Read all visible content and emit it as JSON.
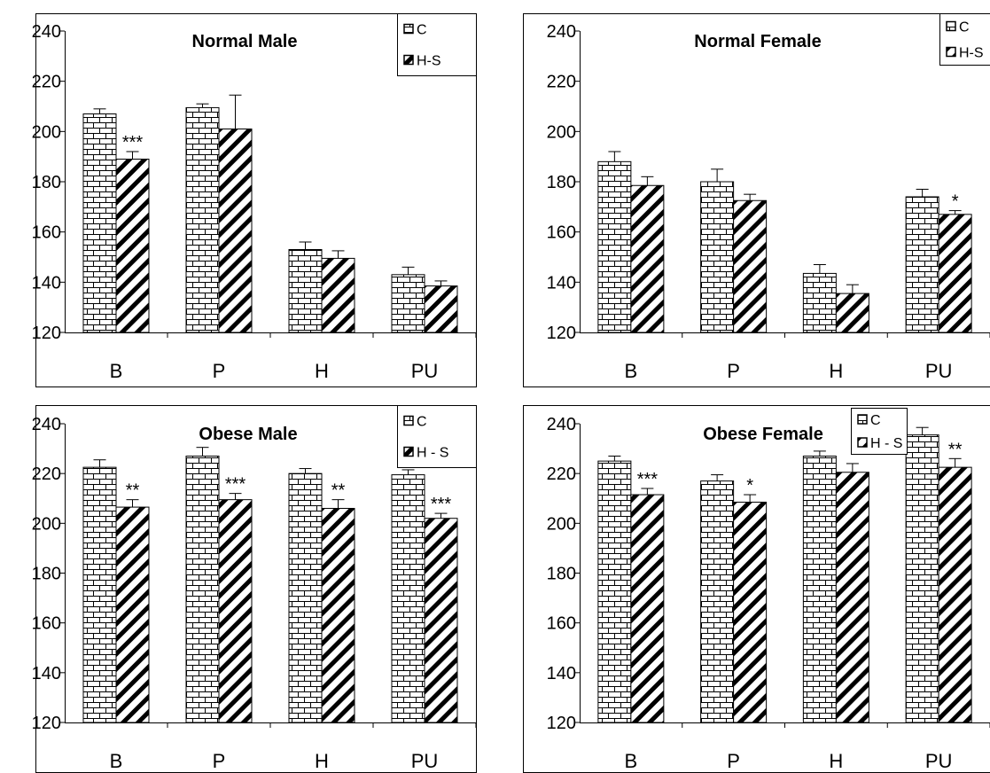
{
  "chart_data": [
    {
      "type": "bar",
      "title": "Normal Male",
      "categories": [
        "B",
        "P",
        "H",
        "PU"
      ],
      "ylim": [
        120,
        240
      ],
      "yticks": [
        120,
        140,
        160,
        180,
        200,
        220,
        240
      ],
      "legend": {
        "placement": "top-right",
        "labels": [
          "C",
          "H-S"
        ]
      },
      "series": [
        {
          "name": "C",
          "values": [
            207,
            209.5,
            153,
            143
          ],
          "errors": [
            2,
            1.5,
            3,
            3
          ]
        },
        {
          "name": "H-S",
          "values": [
            189,
            201,
            149.5,
            138.5
          ],
          "errors": [
            3,
            13.5,
            3,
            2
          ]
        }
      ],
      "significance": [
        "***",
        "",
        "",
        ""
      ]
    },
    {
      "type": "bar",
      "title": "Normal Female",
      "categories": [
        "B",
        "P",
        "H",
        "PU"
      ],
      "ylim": [
        120,
        240
      ],
      "yticks": [
        120,
        140,
        160,
        180,
        200,
        220,
        240
      ],
      "legend": {
        "placement": "top-right",
        "labels": [
          "C",
          "H-S"
        ]
      },
      "series": [
        {
          "name": "C",
          "values": [
            188,
            180,
            143.5,
            174
          ],
          "errors": [
            4,
            5,
            3.5,
            3
          ]
        },
        {
          "name": "H-S",
          "values": [
            178.5,
            172.5,
            135.5,
            167
          ],
          "errors": [
            3.5,
            2.5,
            3.5,
            1.5
          ]
        }
      ],
      "significance": [
        "",
        "",
        "",
        "*"
      ]
    },
    {
      "type": "bar",
      "title": "Obese Male",
      "categories": [
        "B",
        "P",
        "H",
        "PU"
      ],
      "ylim": [
        120,
        240
      ],
      "yticks": [
        120,
        140,
        160,
        180,
        200,
        220,
        240
      ],
      "legend": {
        "placement": "top-right",
        "labels": [
          "C",
          "H - S"
        ]
      },
      "series": [
        {
          "name": "C",
          "values": [
            222.5,
            227,
            220,
            219.5
          ],
          "errors": [
            3,
            3.5,
            2,
            2
          ]
        },
        {
          "name": "H - S",
          "values": [
            206.5,
            209.5,
            206,
            202
          ],
          "errors": [
            3,
            2.5,
            3.5,
            2
          ]
        }
      ],
      "significance": [
        "**",
        "***",
        "**",
        "***"
      ]
    },
    {
      "type": "bar",
      "title": "Obese Female",
      "categories": [
        "B",
        "P",
        "H",
        "PU"
      ],
      "ylim": [
        120,
        240
      ],
      "yticks": [
        120,
        140,
        160,
        180,
        200,
        220,
        240
      ],
      "legend": {
        "placement": "top-right",
        "labels": [
          "C",
          "H - S"
        ]
      },
      "series": [
        {
          "name": "C",
          "values": [
            225,
            217,
            227,
            235.5
          ],
          "errors": [
            2,
            2.5,
            2,
            3
          ]
        },
        {
          "name": "H - S",
          "values": [
            211.5,
            208.5,
            220.5,
            222.5
          ],
          "errors": [
            2.5,
            3,
            3.5,
            3.5
          ]
        }
      ],
      "significance": [
        "***",
        "*",
        "",
        "**"
      ]
    }
  ]
}
